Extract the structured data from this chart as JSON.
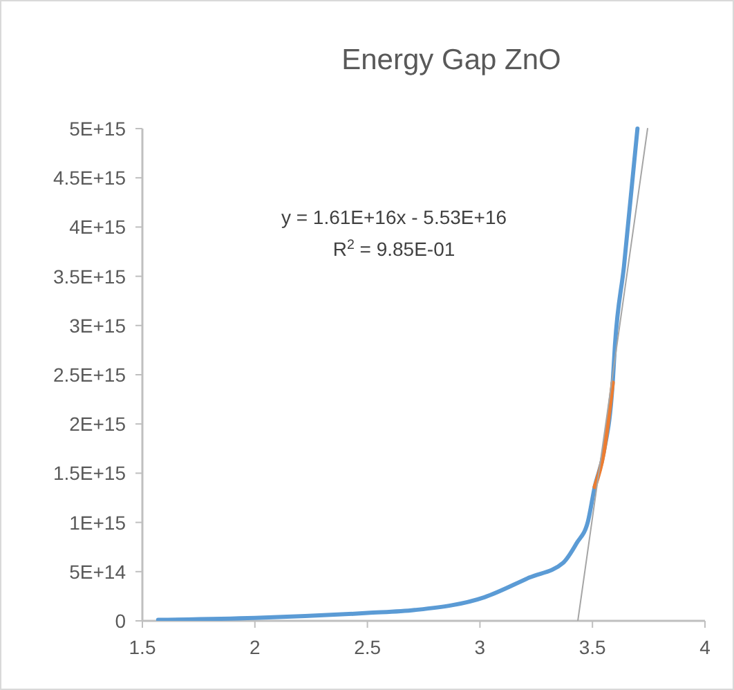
{
  "chart_data": {
    "type": "line",
    "title": "Energy Gap ZnO",
    "series": [
      {
        "color": "#5b9bd5",
        "x": [
          1.57,
          2.0,
          2.5,
          2.71,
          3.02,
          3.22,
          3.37,
          3.43,
          3.48,
          3.51,
          3.55,
          3.59,
          3.6,
          3.64,
          3.7
        ],
        "values": [
          10000000000000.0,
          30000000000000.0,
          80000000000000.0,
          110000000000000.0,
          240000000000000.0,
          440000000000000.0,
          590000000000000.0,
          790000000000000.0,
          1010000000000000.0,
          1360000000000000.0,
          1710000000000000.0,
          2420000000000000.0,
          2800000000000000.0,
          3600000000000000.0,
          5000000000000000.0
        ]
      },
      {
        "color": "#ed7d31",
        "x": [
          3.51,
          3.55,
          3.59
        ],
        "values": [
          1360000000000000.0,
          1710000000000000.0,
          2420000000000000.0
        ]
      },
      {
        "color": "#a5a5a5",
        "x": [
          3.435,
          3.745
        ],
        "values": [
          0,
          5000000000000000.0
        ]
      }
    ],
    "xlim": [
      1.5,
      4
    ],
    "xticks": [
      1.5,
      2,
      2.5,
      3,
      3.5,
      4
    ],
    "ylim": [
      0,
      5000000000000000.0
    ],
    "yticks": [
      0,
      {
        "value": 500000000000000.0,
        "label": "5E+14"
      },
      {
        "value": 1000000000000000.0,
        "label": "1E+15"
      },
      {
        "value": 1500000000000000.0,
        "label": "1.5E+15"
      },
      {
        "value": 2000000000000000.0,
        "label": "2E+15"
      },
      {
        "value": 2500000000000000.0,
        "label": "2.5E+15"
      },
      {
        "value": 3000000000000000.0,
        "label": "3E+15"
      },
      {
        "value": 3500000000000000.0,
        "label": "3.5E+15"
      },
      {
        "value": 4000000000000000.0,
        "label": "4E+15"
      },
      {
        "value": 4500000000000000.0,
        "label": "4.5E+15"
      },
      {
        "value": 5000000000000000.0,
        "label": "5E+15"
      }
    ],
    "annotations": [
      "y = 1.61E+16x - 5.53E+16",
      "R$^{2}$ = 9.85E-01"
    ],
    "grid": false
  }
}
